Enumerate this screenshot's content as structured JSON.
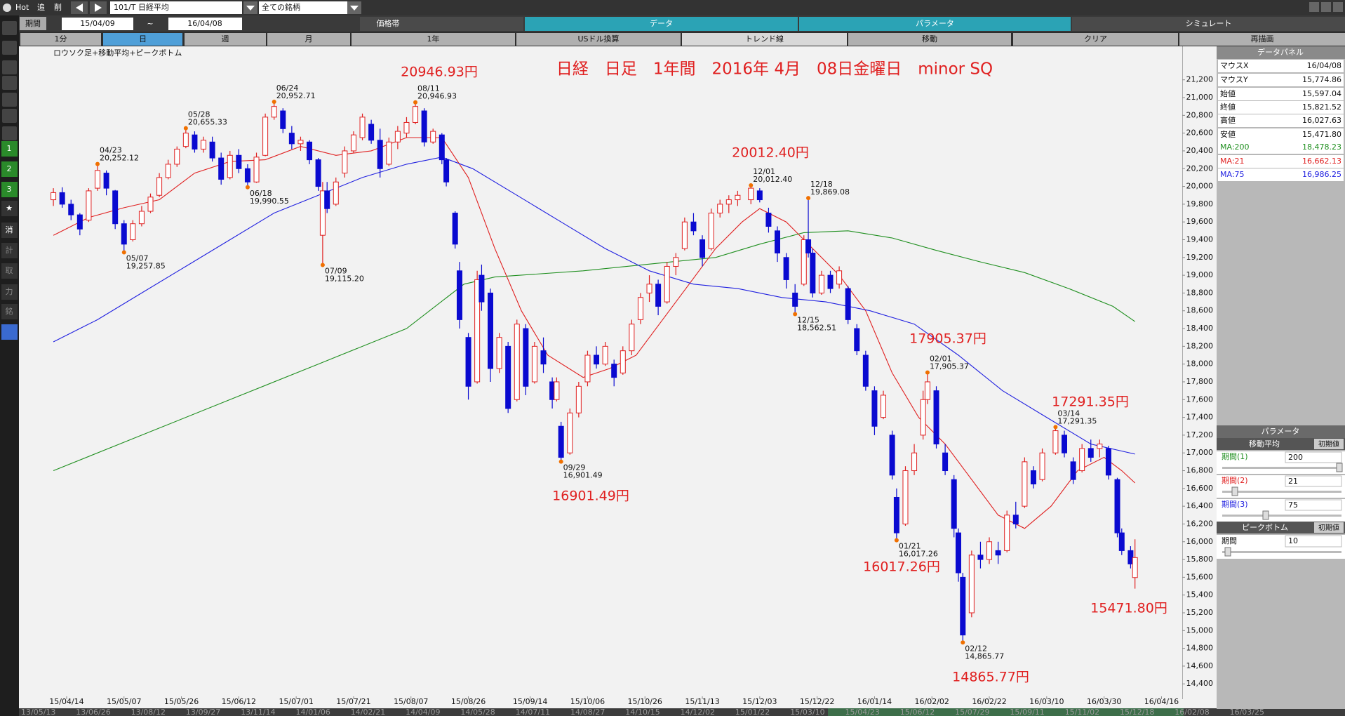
{
  "toolbar": {
    "hot": "Hot",
    "add": "追",
    "delete": "削",
    "symbol": "101/T 日経平均",
    "universe": "全ての銘柄"
  },
  "period": {
    "label": "期間",
    "from": "15/04/09",
    "sep": "~",
    "to": "16/04/08"
  },
  "tabs": [
    "価格帯",
    "データ",
    "パラメータ",
    "シミュレート"
  ],
  "buttons": [
    "1分",
    "日",
    "週",
    "月",
    "1年",
    "USドル換算",
    "トレンド線",
    "移動",
    "クリア",
    "再描画"
  ],
  "sidebar": [
    "1",
    "2",
    "3",
    "★",
    "消",
    "計",
    "取",
    "力",
    "銘"
  ],
  "chart_data": {
    "type": "candlestick",
    "subtitle": "ロウソク足+移動平均+ピークボトム",
    "title": "日経　日足　1年間　2016年 4月　08日金曜日　minor SQ",
    "up_color": "#e02020",
    "down_color": "#0a0ad0",
    "grid": false,
    "x": [
      0,
      2,
      4,
      6,
      8,
      10,
      12,
      14,
      16,
      18,
      20,
      22,
      24,
      26,
      28,
      30,
      32,
      34,
      36,
      38,
      40,
      42,
      44,
      46,
      48,
      50,
      52,
      54,
      56,
      58,
      60,
      61,
      62,
      64,
      66,
      68,
      70,
      72,
      74,
      76,
      78,
      80,
      82,
      84,
      86,
      88,
      89,
      91,
      92,
      94,
      96,
      97,
      99,
      101,
      103,
      105,
      107,
      109,
      111,
      113,
      114,
      115,
      117,
      119,
      121,
      123,
      125,
      127,
      129,
      131,
      133,
      135,
      137,
      139,
      141,
      143,
      145,
      147,
      149,
      151,
      153,
      155,
      158,
      160,
      162,
      164,
      166,
      168,
      170,
      171,
      172,
      174,
      176,
      178,
      180,
      182,
      184,
      186,
      188,
      190,
      191,
      193,
      195,
      197,
      198,
      200,
      202,
      204,
      205,
      206,
      208,
      210,
      212,
      214,
      216,
      218,
      220,
      222,
      224,
      227,
      229,
      231,
      233,
      235,
      237,
      239,
      241,
      242,
      244,
      245
    ],
    "open": [
      19850,
      19930,
      19800,
      19680,
      19620,
      19980,
      20150,
      19950,
      19580,
      19400,
      19580,
      19720,
      19900,
      20100,
      20250,
      20450,
      20580,
      20420,
      20500,
      20320,
      20100,
      20350,
      20200,
      20050,
      20350,
      20780,
      20850,
      20600,
      20480,
      20500,
      20300,
      19450,
      19950,
      19800,
      20150,
      20400,
      20550,
      20700,
      20520,
      20250,
      20500,
      20600,
      20720,
      20850,
      20500,
      20580,
      20300,
      19700,
      19050,
      18300,
      17800,
      19000,
      18800,
      17950,
      18200,
      17600,
      18400,
      17800,
      18150,
      17800,
      17600,
      17300,
      17000,
      17450,
      17800,
      18100,
      18000,
      18000,
      17900,
      18150,
      18500,
      18800,
      18900,
      18700,
      19100,
      19300,
      19600,
      19400,
      19300,
      19700,
      19800,
      19850,
      19850,
      19950,
      19700,
      19500,
      19200,
      18800,
      18900,
      19400,
      19250,
      18800,
      19000,
      18900,
      18850,
      18400,
      18100,
      17700,
      17400,
      17200,
      16500,
      16200,
      16800,
      17200,
      17600,
      17700,
      17000,
      16700,
      16100,
      15600,
      15200,
      15850,
      15800,
      15900,
      15900,
      16300,
      16400,
      16800,
      16700,
      17000,
      17200,
      16900,
      16800,
      17050,
      17050,
      17050,
      16700,
      16100,
      15900,
      15597.04
    ],
    "high": [
      19980,
      19990,
      19850,
      19700,
      19980,
      20252.12,
      20180,
      19960,
      19620,
      19620,
      19780,
      19920,
      20150,
      20300,
      20450,
      20655.33,
      20620,
      20560,
      20560,
      20380,
      20400,
      20420,
      20250,
      20380,
      20820,
      20952.71,
      20880,
      20680,
      20560,
      20520,
      20320,
      20050,
      20050,
      20100,
      20450,
      20620,
      20820,
      20750,
      20650,
      20550,
      20680,
      20780,
      20946.93,
      20880,
      20650,
      20600,
      20320,
      19720,
      19150,
      18350,
      19050,
      19120,
      18850,
      18350,
      18250,
      18500,
      18450,
      18250,
      18300,
      17850,
      17850,
      17350,
      17500,
      17800,
      18150,
      18200,
      18250,
      18050,
      18200,
      18500,
      18800,
      19000,
      18950,
      19150,
      19250,
      19650,
      19700,
      19450,
      19750,
      19850,
      19900,
      19950,
      20012.4,
      19980,
      19760,
      19550,
      19250,
      18900,
      19450,
      19869.08,
      19300,
      19050,
      19050,
      19100,
      18880,
      18450,
      18150,
      17750,
      17700,
      17250,
      16600,
      16850,
      17100,
      17700,
      17905.37,
      17750,
      17100,
      16750,
      16150,
      15650,
      15900,
      16000,
      16050,
      16000,
      16350,
      16450,
      16950,
      16850,
      17050,
      17291.35,
      17250,
      16950,
      17100,
      17150,
      17150,
      17080,
      16720,
      16150,
      15950,
      16027.63
    ],
    "low": [
      19780,
      19760,
      19620,
      19450,
      19600,
      19950,
      19900,
      19520,
      19257.85,
      19380,
      19550,
      19700,
      19880,
      20080,
      20220,
      20430,
      20380,
      20380,
      20280,
      20020,
      20080,
      20150,
      19990.55,
      20040,
      20340,
      20750,
      20600,
      20420,
      20400,
      20250,
      19950,
      19115.2,
      19700,
      19780,
      20100,
      20380,
      20520,
      20480,
      20100,
      20230,
      20420,
      20550,
      20700,
      20450,
      20480,
      20250,
      20000,
      19300,
      18400,
      17600,
      17780,
      18600,
      17800,
      17900,
      17450,
      17580,
      17650,
      17780,
      17900,
      17500,
      17580,
      16901.49,
      16980,
      17400,
      17750,
      17950,
      17980,
      17750,
      17880,
      18100,
      18450,
      18700,
      18550,
      18680,
      19000,
      19280,
      19450,
      19100,
      19280,
      19650,
      19700,
      19780,
      19800,
      19820,
      19480,
      19150,
      18850,
      18562.51,
      18880,
      19200,
      18750,
      18780,
      18800,
      18850,
      18450,
      18100,
      17700,
      17200,
      17380,
      16700,
      16017.26,
      16180,
      16750,
      17150,
      17550,
      17050,
      16750,
      16050,
      15550,
      14865.77,
      15150,
      15700,
      15750,
      15750,
      15880,
      16150,
      16380,
      16600,
      16680,
      16980,
      16950,
      16650,
      16780,
      16900,
      16950,
      16700,
      16050,
      15850,
      15700,
      15471.8
    ],
    "close": [
      19930,
      19800,
      19680,
      19520,
      19950,
      20180,
      19980,
      19580,
      19350,
      19580,
      19720,
      19880,
      20100,
      20250,
      20420,
      20600,
      20420,
      20520,
      20320,
      20080,
      20350,
      20200,
      20050,
      20330,
      20780,
      20900,
      20650,
      20480,
      20520,
      20300,
      20000,
      19950,
      19750,
      20050,
      20400,
      20580,
      20780,
      20520,
      20200,
      20500,
      20620,
      20720,
      20900,
      20500,
      20620,
      20300,
      20050,
      19350,
      18500,
      17750,
      18950,
      18700,
      17950,
      18300,
      17500,
      18450,
      17750,
      18200,
      18000,
      17600,
      17800,
      16950,
      17450,
      17750,
      18100,
      18000,
      18200,
      17850,
      18150,
      18450,
      18750,
      18900,
      18650,
      19100,
      19200,
      19600,
      19500,
      19200,
      19700,
      19800,
      19850,
      19900,
      19980,
      19850,
      19550,
      19250,
      18950,
      18650,
      19400,
      19250,
      18800,
      19000,
      18850,
      19050,
      18500,
      18150,
      17750,
      17300,
      17650,
      16750,
      16100,
      16800,
      17000,
      17600,
      17800,
      17100,
      16800,
      16150,
      15650,
      14950,
      15850,
      15800,
      16000,
      15850,
      16300,
      16200,
      16900,
      16650,
      17000,
      17250,
      17000,
      16700,
      17050,
      16950,
      17100,
      16750,
      16100,
      15900,
      15750,
      15821.52
    ],
    "series": [
      {
        "name": "MA:200",
        "color": "#1f8f1f",
        "x": [
          0,
          20,
          40,
          60,
          80,
          93,
          100,
          120,
          140,
          150,
          160,
          170,
          180,
          190,
          200,
          210,
          220,
          230,
          240,
          245
        ],
        "values": [
          16800,
          17200,
          17600,
          18000,
          18400,
          18900,
          18980,
          19050,
          19150,
          19200,
          19350,
          19480,
          19500,
          19420,
          19280,
          19150,
          19030,
          18850,
          18650,
          18478.23
        ]
      },
      {
        "name": "MA:21",
        "color": "#e02020",
        "x": [
          0,
          8,
          16,
          24,
          32,
          40,
          48,
          56,
          64,
          72,
          80,
          88,
          94,
          100,
          106,
          112,
          120,
          126,
          132,
          138,
          144,
          150,
          156,
          160,
          166,
          172,
          178,
          184,
          190,
          196,
          202,
          208,
          214,
          220,
          226,
          232,
          238,
          242,
          245
        ],
        "values": [
          19450,
          19650,
          19760,
          19850,
          20150,
          20280,
          20300,
          20450,
          20350,
          20400,
          20550,
          20550,
          20100,
          19300,
          18600,
          18100,
          17850,
          17950,
          18100,
          18500,
          18900,
          19300,
          19600,
          19750,
          19600,
          19300,
          19000,
          18600,
          17900,
          17400,
          17100,
          16700,
          16300,
          16150,
          16400,
          16800,
          16950,
          16800,
          16662.13
        ]
      },
      {
        "name": "MA:75",
        "color": "#2020e0",
        "x": [
          0,
          10,
          20,
          30,
          40,
          50,
          60,
          70,
          80,
          88,
          95,
          105,
          115,
          125,
          135,
          145,
          155,
          165,
          175,
          185,
          195,
          205,
          215,
          225,
          235,
          245
        ],
        "values": [
          18250,
          18500,
          18800,
          19100,
          19400,
          19700,
          19900,
          20100,
          20250,
          20330,
          20200,
          19900,
          19600,
          19300,
          19050,
          18900,
          18850,
          18750,
          18700,
          18600,
          18450,
          18100,
          17700,
          17400,
          17100,
          16986.25
        ]
      }
    ],
    "xlim": [
      -7.8,
      255.7
    ],
    "xticks": [
      {
        "value": 3,
        "label": "15/04/14"
      },
      {
        "value": 16,
        "label": "15/05/07"
      },
      {
        "value": 29,
        "label": "15/05/26"
      },
      {
        "value": 42,
        "label": "15/06/12"
      },
      {
        "value": 55,
        "label": "15/07/01"
      },
      {
        "value": 68,
        "label": "15/07/21"
      },
      {
        "value": 81,
        "label": "15/08/07"
      },
      {
        "value": 94,
        "label": "15/08/26"
      },
      {
        "value": 108,
        "label": "15/09/14"
      },
      {
        "value": 121,
        "label": "15/10/06"
      },
      {
        "value": 134,
        "label": "15/10/26"
      },
      {
        "value": 147,
        "label": "15/11/13"
      },
      {
        "value": 160,
        "label": "15/12/03"
      },
      {
        "value": 173,
        "label": "15/12/22"
      },
      {
        "value": 186,
        "label": "16/01/14"
      },
      {
        "value": 199,
        "label": "16/02/02"
      },
      {
        "value": 212,
        "label": "16/02/22"
      },
      {
        "value": 225,
        "label": "16/03/10"
      },
      {
        "value": 238,
        "label": "16/03/30"
      },
      {
        "value": 251,
        "label": "16/04/16"
      }
    ],
    "ylim": [
      14228,
      21577
    ],
    "yticks": [
      {
        "value": 14400,
        "label": "14,400"
      },
      {
        "value": 14600,
        "label": "14,600"
      },
      {
        "value": 14800,
        "label": "14,800"
      },
      {
        "value": 15000,
        "label": "15,000"
      },
      {
        "value": 15200,
        "label": "15,200"
      },
      {
        "value": 15400,
        "label": "15,400"
      },
      {
        "value": 15600,
        "label": "15,600"
      },
      {
        "value": 15800,
        "label": "15,800"
      },
      {
        "value": 16000,
        "label": "16,000"
      },
      {
        "value": 16200,
        "label": "16,200"
      },
      {
        "value": 16400,
        "label": "16,400"
      },
      {
        "value": 16600,
        "label": "16,600"
      },
      {
        "value": 16800,
        "label": "16,800"
      },
      {
        "value": 17000,
        "label": "17,000"
      },
      {
        "value": 17200,
        "label": "17,200"
      },
      {
        "value": 17400,
        "label": "17,400"
      },
      {
        "value": 17600,
        "label": "17,600"
      },
      {
        "value": 17800,
        "label": "17,800"
      },
      {
        "value": 18000,
        "label": "18,000"
      },
      {
        "value": 18200,
        "label": "18,200"
      },
      {
        "value": 18400,
        "label": "18,400"
      },
      {
        "value": 18600,
        "label": "18,600"
      },
      {
        "value": 18800,
        "label": "18,800"
      },
      {
        "value": 19000,
        "label": "19,000"
      },
      {
        "value": 19200,
        "label": "19,200"
      },
      {
        "value": 19400,
        "label": "19,400"
      },
      {
        "value": 19600,
        "label": "19,600"
      },
      {
        "value": 19800,
        "label": "19,800"
      },
      {
        "value": 20000,
        "label": "20,000"
      },
      {
        "value": 20200,
        "label": "20,200"
      },
      {
        "value": 20400,
        "label": "20,400"
      },
      {
        "value": 20600,
        "label": "20,600"
      },
      {
        "value": 20800,
        "label": "20,800"
      },
      {
        "value": 21000,
        "label": "21,000"
      },
      {
        "value": 21200,
        "label": "21,200"
      }
    ],
    "peaks": [
      {
        "x": 10,
        "date": "04/23",
        "value": 20252.12,
        "label": "20,252.12"
      },
      {
        "x": 16,
        "date": "05/07",
        "value": 19257.85,
        "label": "19,257.85"
      },
      {
        "x": 30,
        "date": "05/28",
        "value": 20655.33,
        "label": "20,655.33"
      },
      {
        "x": 44,
        "date": "06/18",
        "value": 19990.55,
        "label": "19,990.55"
      },
      {
        "x": 50,
        "date": "06/24",
        "value": 20952.71,
        "label": "20,952.71"
      },
      {
        "x": 61,
        "date": "07/09",
        "value": 19115.2,
        "label": "19,115.20"
      },
      {
        "x": 82,
        "date": "08/11",
        "value": 20946.93,
        "label": "20,946.93"
      },
      {
        "x": 115,
        "date": "09/29",
        "value": 16901.49,
        "label": "16,901.49"
      },
      {
        "x": 158,
        "date": "12/01",
        "value": 20012.4,
        "label": "20,012.40"
      },
      {
        "x": 168,
        "date": "12/15",
        "value": 18562.51,
        "label": "18,562.51"
      },
      {
        "x": 171,
        "date": "12/18",
        "value": 19869.08,
        "label": "19,869.08"
      },
      {
        "x": 191,
        "date": "01/21",
        "value": 16017.26,
        "label": "16,017.26"
      },
      {
        "x": 198,
        "date": "02/01",
        "value": 17905.37,
        "label": "17,905.37"
      },
      {
        "x": 206,
        "date": "02/12",
        "value": 14865.77,
        "label": "14,865.77"
      },
      {
        "x": 227,
        "date": "03/14",
        "value": 17291.35,
        "label": "17,291.35"
      }
    ],
    "callouts": [
      "20946.93円",
      "20012.40円",
      "17905.37円",
      "17291.35円",
      "16901.49円",
      "16017.26円",
      "14865.77円",
      "15471.80円"
    ]
  },
  "data_panel": {
    "title": "データパネル",
    "rows": [
      [
        "マウスX",
        "16/04/08"
      ],
      [
        "マウスY",
        "15,774.86"
      ],
      [
        "始値",
        "15,597.04"
      ],
      [
        "終値",
        "15,821.52"
      ],
      [
        "高値",
        "16,027.63"
      ],
      [
        "安値",
        "15,471.80"
      ]
    ],
    "ma_values": [
      "18,478.23",
      "16,662.13",
      "16,986.25"
    ]
  },
  "parameters": {
    "title": "パラメータ",
    "moving_average": "移動平均",
    "reset": "初期値",
    "periods": [
      [
        "期間(1)",
        "200"
      ],
      [
        "期間(2)",
        "21"
      ],
      [
        "期間(3)",
        "75"
      ]
    ],
    "peak_bottom": "ピークボトム",
    "peak_reset": "初期値",
    "peak_period": [
      "期間",
      "10"
    ]
  },
  "overview_dates": [
    "13/05/13",
    "13/06/26",
    "13/08/12",
    "13/09/27",
    "13/11/14",
    "14/01/06",
    "14/02/21",
    "14/04/09",
    "14/05/28",
    "14/07/11",
    "14/08/27",
    "14/10/15",
    "14/12/02",
    "15/01/22",
    "15/03/10",
    "15/04/23",
    "15/06/12",
    "15/07/29",
    "15/09/11",
    "15/11/02",
    "15/12/18",
    "16/02/08",
    "16/03/25"
  ]
}
